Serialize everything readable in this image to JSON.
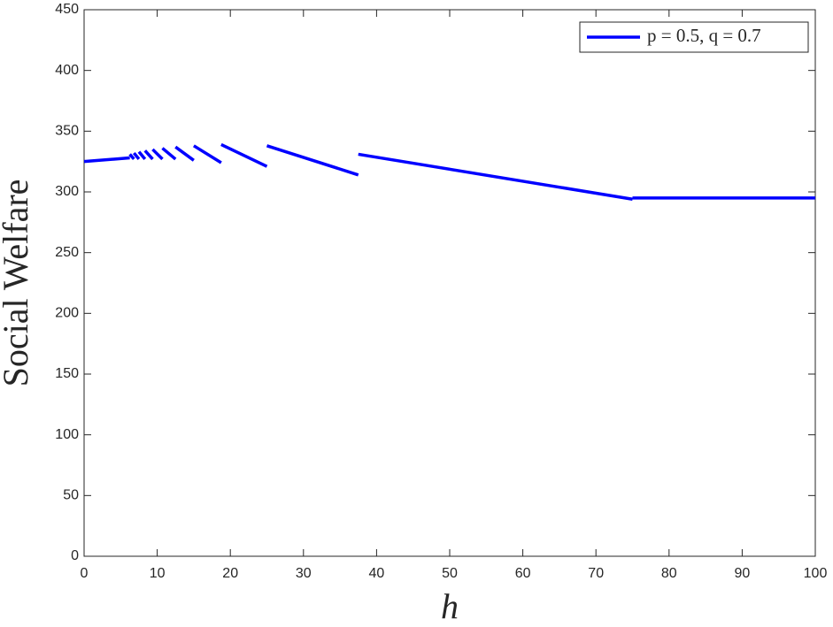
{
  "chart_data": {
    "type": "line",
    "xlabel": "h",
    "ylabel": "Social Welfare",
    "x": [
      0,
      6.25,
      null,
      6.25,
      6.82,
      null,
      6.82,
      7.5,
      null,
      7.5,
      8.33,
      null,
      8.33,
      9.375,
      null,
      9.375,
      10.71,
      null,
      10.71,
      12.5,
      null,
      12.5,
      15,
      null,
      15,
      18.75,
      null,
      18.75,
      25,
      null,
      25,
      37.5,
      null,
      37.5,
      75,
      null,
      75,
      100
    ],
    "series": [
      {
        "name": "p = 0.5, q = 0.7",
        "color": "#0000ff",
        "values": [
          325,
          328,
          null,
          331,
          327,
          null,
          332,
          327,
          null,
          333,
          327,
          null,
          334,
          327,
          null,
          335,
          327,
          null,
          336,
          327,
          null,
          337,
          326,
          null,
          338,
          324,
          null,
          339,
          321,
          null,
          338,
          314,
          null,
          331,
          294,
          null,
          295,
          295
        ]
      }
    ],
    "xlim": [
      0,
      100
    ],
    "xticks": [
      0,
      10,
      20,
      30,
      40,
      50,
      60,
      70,
      80,
      90,
      100
    ],
    "ylim": [
      0,
      450
    ],
    "yticks": [
      0,
      50,
      100,
      150,
      200,
      250,
      300,
      350,
      400,
      450
    ],
    "grid": false,
    "legend": "upper right"
  }
}
